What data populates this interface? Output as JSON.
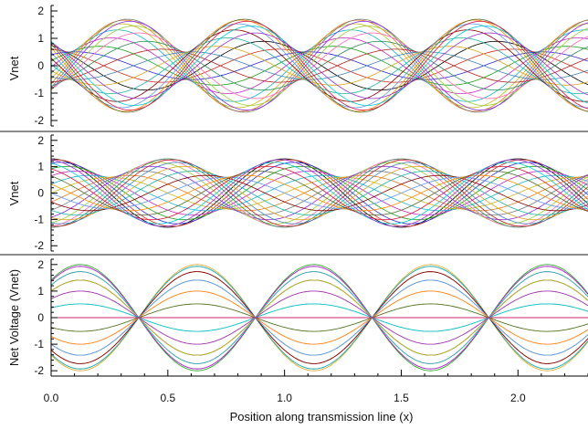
{
  "chart_data": [
    {
      "type": "line",
      "panel": "top",
      "title": "",
      "xlabel": "",
      "ylabel": "Vnet",
      "xlim": [
        0.0,
        2.3
      ],
      "ylim": [
        -2.2,
        2.2
      ],
      "yticks": [
        -2,
        -1,
        0,
        1,
        2
      ],
      "grid": false,
      "legend": "none",
      "description_of_series": "24 time snapshots of a partial standing wave, reflection coefficient ~0.3",
      "envelope_max": [
        {
          "x": 0.02,
          "y": 0.5
        },
        {
          "x": 0.27,
          "y": 1.7
        },
        {
          "x": 0.52,
          "y": 0.5
        },
        {
          "x": 0.77,
          "y": 1.7
        },
        {
          "x": 1.02,
          "y": 0.5
        },
        {
          "x": 1.27,
          "y": 1.7
        },
        {
          "x": 1.52,
          "y": 0.5
        },
        {
          "x": 1.77,
          "y": 1.7
        },
        {
          "x": 2.02,
          "y": 0.5
        },
        {
          "x": 2.27,
          "y": 1.7
        }
      ],
      "params": {
        "forward_amp": 1.1,
        "reflected_amp": 0.6,
        "wavelength": 1.0,
        "phase_shift": 0.35,
        "snapshots": 24
      }
    },
    {
      "type": "line",
      "panel": "middle",
      "title": "",
      "xlabel": "",
      "ylabel": "Vnet",
      "xlim": [
        0.0,
        2.3
      ],
      "ylim": [
        -2.2,
        2.2
      ],
      "yticks": [
        -2,
        -1,
        0,
        1,
        2
      ],
      "grid": false,
      "legend": "none",
      "description_of_series": "24 time snapshots of a mostly travelling wave, small reflection",
      "envelope_max": [
        {
          "x": 0.0,
          "y": 1.3
        },
        {
          "x": 0.25,
          "y": 0.6
        },
        {
          "x": 0.5,
          "y": 1.3
        },
        {
          "x": 0.75,
          "y": 0.6
        },
        {
          "x": 1.0,
          "y": 1.3
        },
        {
          "x": 1.25,
          "y": 0.6
        },
        {
          "x": 1.5,
          "y": 1.3
        },
        {
          "x": 1.75,
          "y": 0.6
        },
        {
          "x": 2.0,
          "y": 1.3
        },
        {
          "x": 2.25,
          "y": 0.6
        }
      ],
      "params": {
        "forward_amp": 0.95,
        "reflected_amp": 0.35,
        "wavelength": 1.0,
        "phase_shift": 0.0,
        "snapshots": 24
      }
    },
    {
      "type": "line",
      "panel": "bottom",
      "title": "",
      "xlabel": "Position along transmission line (x)",
      "ylabel": "Net Voltage (Vnet)",
      "xlim": [
        0.0,
        2.3
      ],
      "ylim": [
        -2.2,
        2.2
      ],
      "xticks": [
        0.0,
        0.5,
        1.0,
        1.5,
        2.0
      ],
      "xtick_labels": [
        "0.0",
        "0.5",
        "1.0",
        "1.5",
        "2.0"
      ],
      "yticks": [
        -2,
        -1,
        0,
        1,
        2
      ],
      "grid": false,
      "legend": "none",
      "description_of_series": "24 time snapshots of a pure standing wave, nodes at x = 0.47, 0.97, 1.47, 1.97",
      "envelope_max": [
        {
          "x": 0.22,
          "y": 2.0
        },
        {
          "x": 0.47,
          "y": 0.0
        },
        {
          "x": 0.72,
          "y": 2.0
        },
        {
          "x": 0.97,
          "y": 0.0
        },
        {
          "x": 1.22,
          "y": 2.0
        },
        {
          "x": 1.47,
          "y": 0.0
        },
        {
          "x": 1.72,
          "y": 2.0
        },
        {
          "x": 1.97,
          "y": 0.0
        },
        {
          "x": 2.22,
          "y": 2.0
        }
      ],
      "params": {
        "forward_amp": 1.0,
        "reflected_amp": 1.0,
        "wavelength": 1.0,
        "phase_shift": -0.25,
        "snapshots": 24
      }
    }
  ],
  "ui": {
    "top_ylabel": "Vnet",
    "mid_ylabel": "Vnet",
    "bot_ylabel": "Net Voltage (Vnet)",
    "xlabel": "Position along transmission line (x)"
  },
  "colors": [
    "#000000",
    "#d0301e",
    "#2b2bd6",
    "#1a9e1a",
    "#c02bc0",
    "#1bb7c9",
    "#c9b81b",
    "#e07b1d",
    "#7a7a7a",
    "#8a2be2",
    "#9acd32",
    "#ff69b4",
    "#2e8b57",
    "#b22222",
    "#4682b4",
    "#daa520",
    "#20b2aa",
    "#800000",
    "#6495ed",
    "#ff8c00",
    "#556b2f",
    "#dc143c",
    "#00ced1",
    "#9932cc"
  ]
}
